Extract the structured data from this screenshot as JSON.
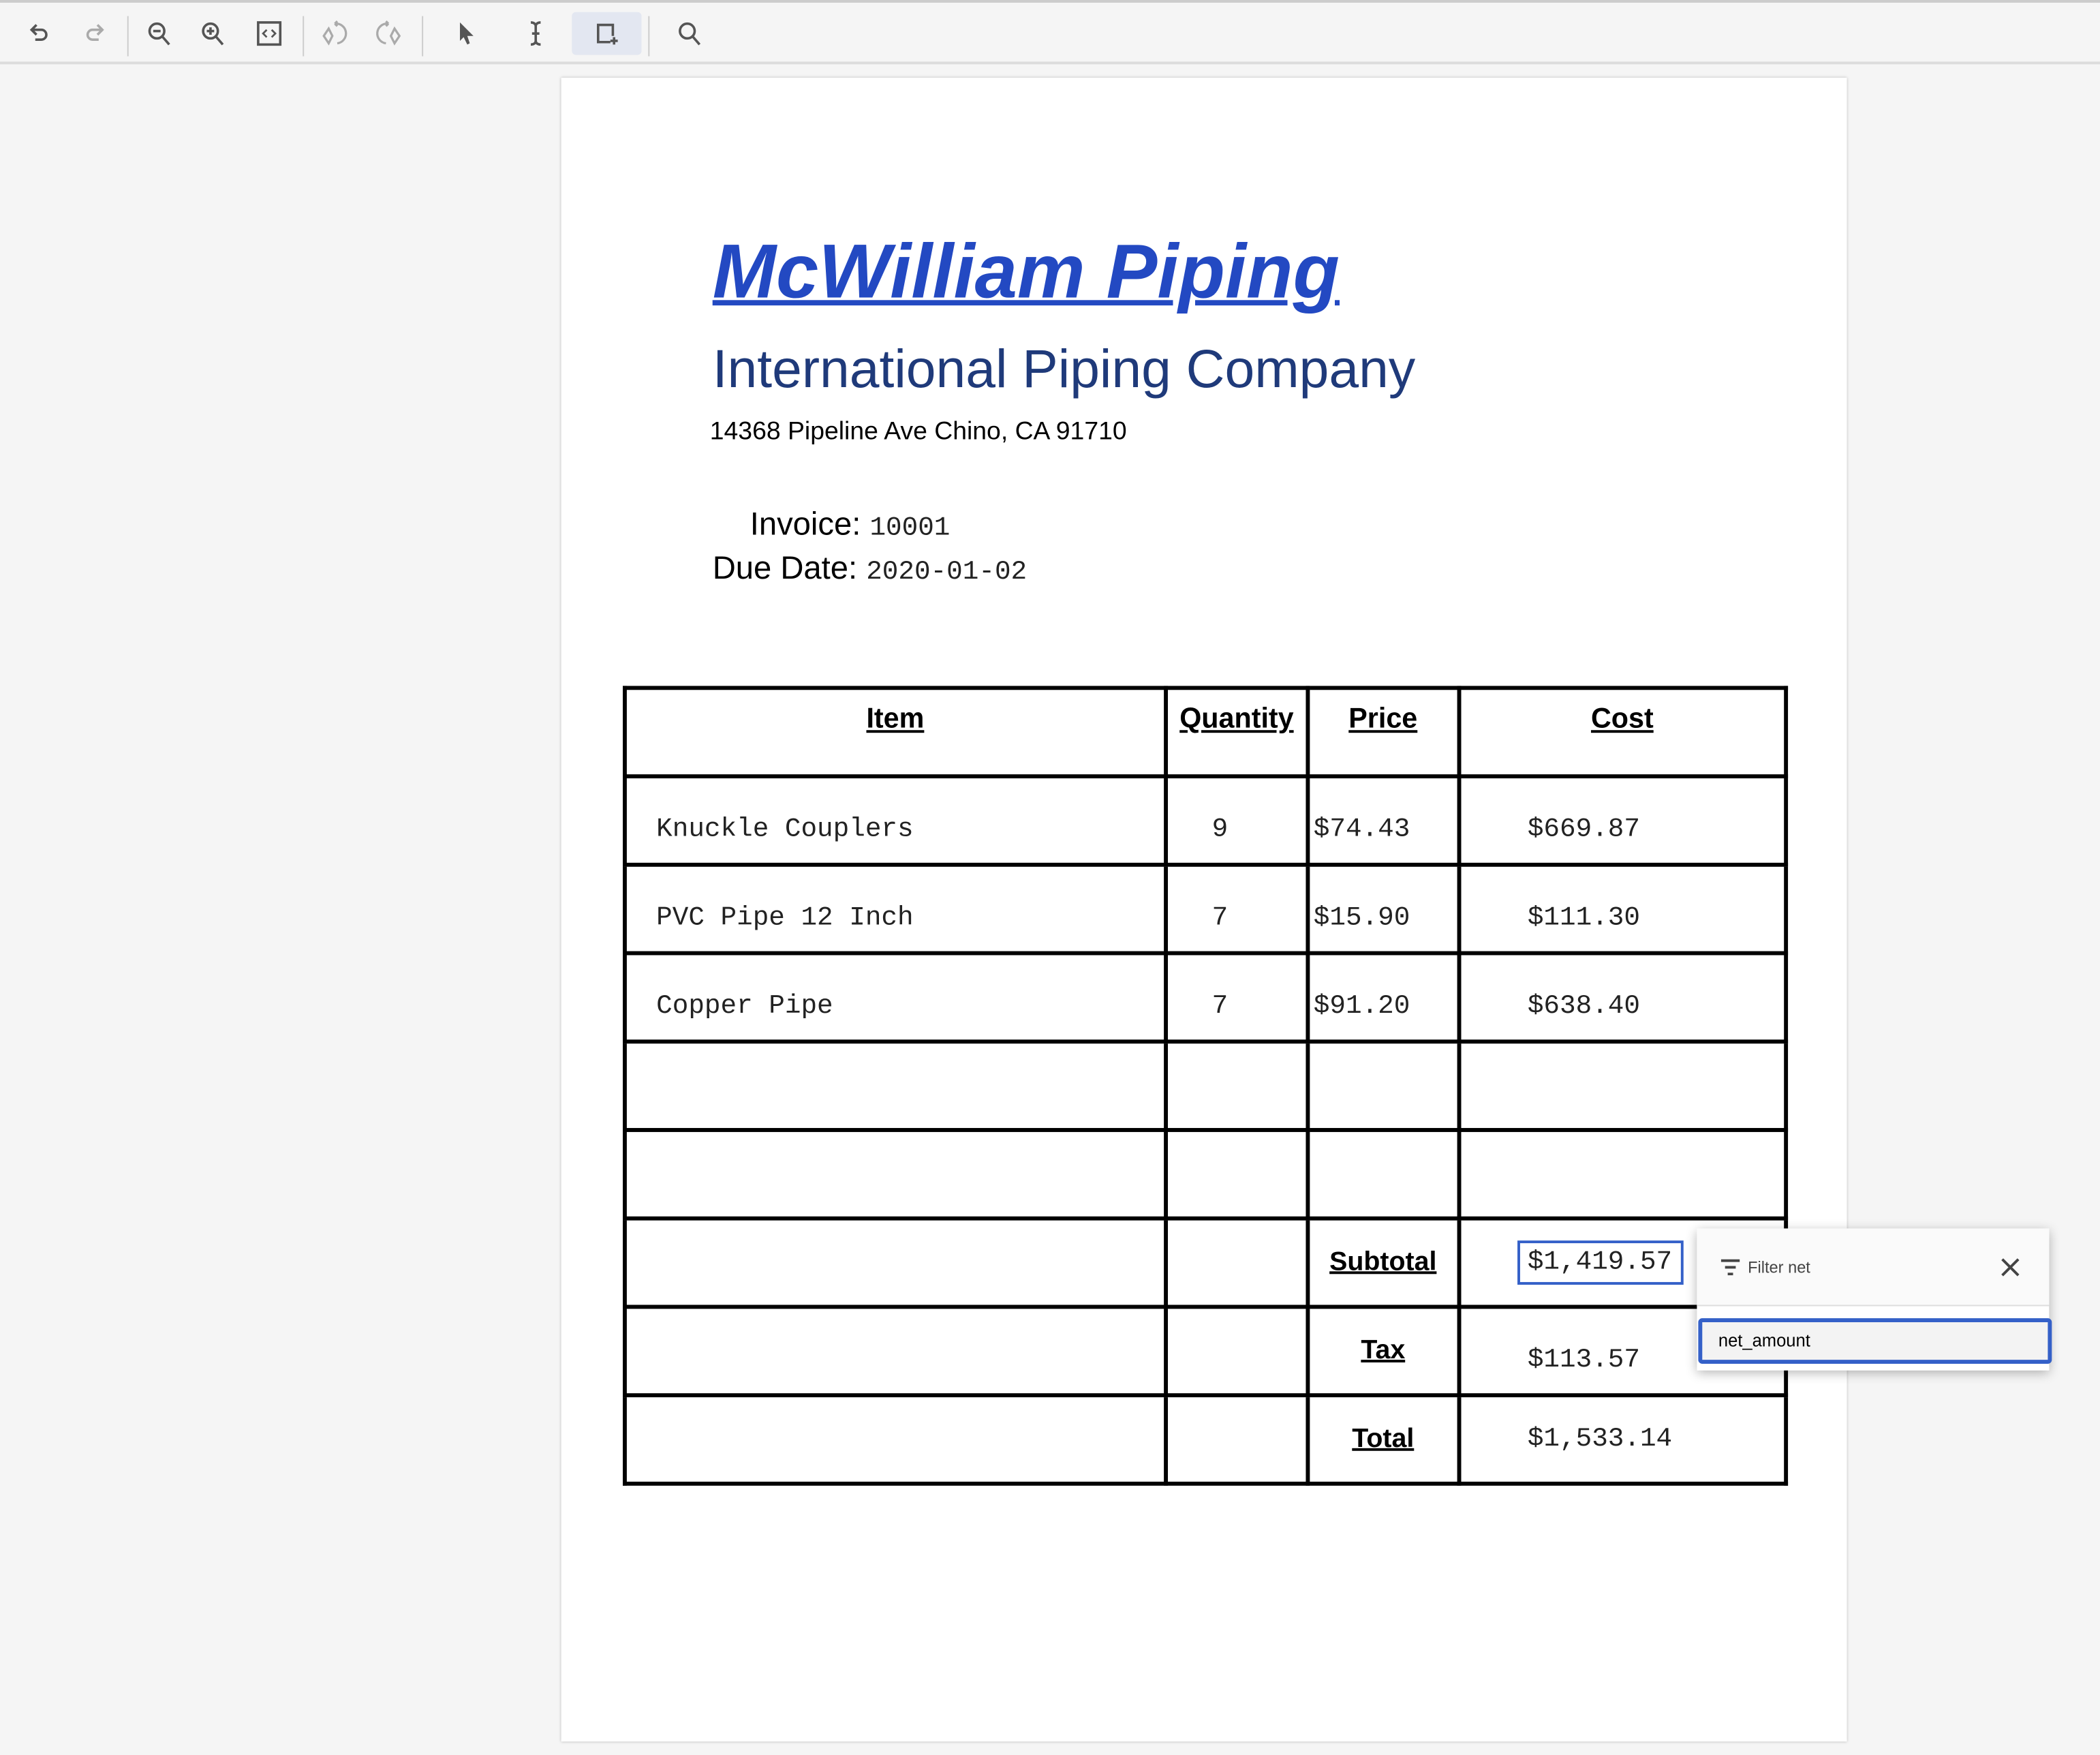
{
  "toolbar": {
    "buttons": [
      {
        "name": "undo-icon",
        "enabled": true
      },
      {
        "name": "redo-icon",
        "enabled": false
      },
      {
        "name": "zoom-out-icon",
        "enabled": true
      },
      {
        "name": "zoom-in-icon",
        "enabled": true
      },
      {
        "name": "fit-page-icon",
        "enabled": true
      },
      {
        "name": "rotate-left-icon",
        "enabled": false
      },
      {
        "name": "rotate-right-icon",
        "enabled": false
      },
      {
        "name": "pointer-icon",
        "enabled": true
      },
      {
        "name": "text-cursor-icon",
        "enabled": true
      },
      {
        "name": "add-region-icon",
        "enabled": true,
        "active": true
      },
      {
        "name": "search-icon",
        "enabled": true
      }
    ]
  },
  "document": {
    "company": "McWilliam Piping",
    "subtitle": "International Piping Company",
    "address": "14368 Pipeline Ave Chino, CA 91710",
    "invoice_label": "Invoice:",
    "invoice_number": "10001",
    "due_date_label": "Due Date:",
    "due_date": "2020-01-02",
    "table": {
      "headers": [
        "Item",
        "Quantity",
        "Price",
        "Cost"
      ],
      "rows": [
        {
          "item": "Knuckle Couplers",
          "quantity": "9",
          "price": "$74.43",
          "cost": "$669.87"
        },
        {
          "item": "PVC Pipe 12 Inch",
          "quantity": "7",
          "price": "$15.90",
          "cost": "$111.30"
        },
        {
          "item": "Copper Pipe",
          "quantity": "7",
          "price": "$91.20",
          "cost": "$638.40"
        }
      ],
      "subtotal_label": "Subtotal",
      "subtotal": "$1,419.57",
      "tax_label": "Tax",
      "tax": "$113.57",
      "total_label": "Total",
      "total": "$1,533.14"
    }
  },
  "popup": {
    "title": "Filter net",
    "option": "net_amount"
  },
  "colors": {
    "accent": "#3460c8",
    "title": "#2349c2",
    "subtitle": "#1f3a7a"
  }
}
